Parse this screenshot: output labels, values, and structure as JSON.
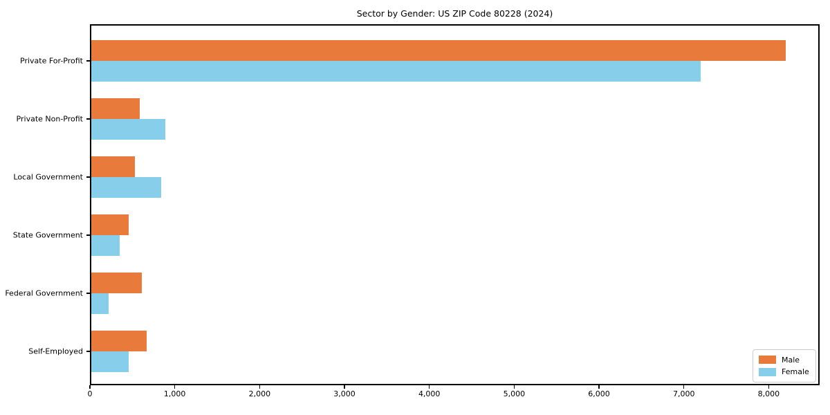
{
  "title": "Sector by Gender: US ZIP Code 80228 (2024)",
  "chart_data": {
    "type": "bar",
    "orientation": "horizontal",
    "title": "Sector by Gender: US ZIP Code 80228 (2024)",
    "categories": [
      "Private For-Profit",
      "Private Non-Profit",
      "Local Government",
      "State Government",
      "Federal Government",
      "Self-Employed"
    ],
    "series": [
      {
        "name": "Male",
        "color": "#E87A3C",
        "values": [
          8200,
          590,
          530,
          460,
          610,
          670
        ]
      },
      {
        "name": "Female",
        "color": "#87CEEB",
        "values": [
          7200,
          890,
          840,
          350,
          220,
          460
        ]
      }
    ],
    "xlabel": "",
    "ylabel": "",
    "xlim": [
      0,
      8600
    ],
    "xticks": [
      0,
      1000,
      2000,
      3000,
      4000,
      5000,
      6000,
      7000,
      8000
    ],
    "xtick_labels": [
      "0",
      "1,000",
      "2,000",
      "3,000",
      "4,000",
      "5,000",
      "6,000",
      "7,000",
      "8,000"
    ],
    "grid": false,
    "legend_position": "lower right"
  }
}
